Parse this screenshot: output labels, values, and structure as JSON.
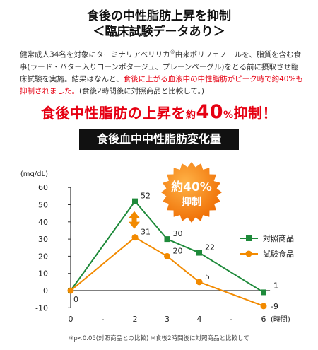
{
  "header": {
    "title_line1": "食後の中性脂肪上昇を抑制",
    "title_line2": "＜臨床試験データあり＞"
  },
  "intro": {
    "part1": "健常成人34名を対象にターミナリアベリリカ",
    "mark": "®",
    "part2": "由来ポリフェノールを、脂質を含む食事(ラード・バター入りコーンポタージュ、プレーンベーグル)をとる前に摂取させ臨床試験を実施。結果はなんと、",
    "highlight": "食後に上がる血液中の中性脂肪がピーク時で約40%も抑制されました。",
    "part3": "(食後2時間後に対照商品と比較して。)"
  },
  "headline": {
    "text1": "食後中性脂肪の上昇を",
    "text2": "約",
    "big": "40",
    "pct": "%",
    "text3": "抑制！"
  },
  "banner": {
    "label": "食後血中中性脂肪変化量"
  },
  "badge": {
    "line1": "約40%",
    "line2": "抑制",
    "mark": "※"
  },
  "footnote": {
    "text": "※p<0.05(対照商品との比較) ※食後2時間後に対照商品と比較して"
  },
  "chart_data": {
    "type": "line",
    "ylabel": "(mg/dL)",
    "xlabel": "(時間)",
    "ylim": [
      -10,
      60
    ],
    "yticks": [
      -10,
      0,
      10,
      20,
      30,
      40,
      50,
      60
    ],
    "x_ticks": [
      {
        "x": 0,
        "label": "0"
      },
      {
        "x": 1,
        "label": "-"
      },
      {
        "x": 2,
        "label": "2"
      },
      {
        "x": 3,
        "label": "3"
      },
      {
        "x": 4,
        "label": "4"
      },
      {
        "x": 5,
        "label": "-"
      },
      {
        "x": 6,
        "label": "6"
      }
    ],
    "legend_position": "right",
    "colors": {
      "control": "#1e8a3a",
      "test": "#f28a00",
      "arrow": "#f28a00",
      "badge": "#f07800"
    },
    "series": [
      {
        "name": "対照商品",
        "color": "#1e8a3a",
        "marker": "square",
        "points": [
          [
            0,
            0
          ],
          [
            2,
            52
          ],
          [
            3,
            30
          ],
          [
            4,
            22
          ],
          [
            6,
            -1
          ]
        ],
        "labels": [
          "0",
          "52",
          "30",
          "22",
          "-1"
        ]
      },
      {
        "name": "試験食品",
        "color": "#f28a00",
        "marker": "circle",
        "points": [
          [
            0,
            0
          ],
          [
            2,
            31
          ],
          [
            3,
            20
          ],
          [
            4,
            5
          ],
          [
            6,
            -9
          ]
        ],
        "labels": [
          "",
          "31",
          "20",
          "5",
          "-9"
        ]
      }
    ]
  }
}
